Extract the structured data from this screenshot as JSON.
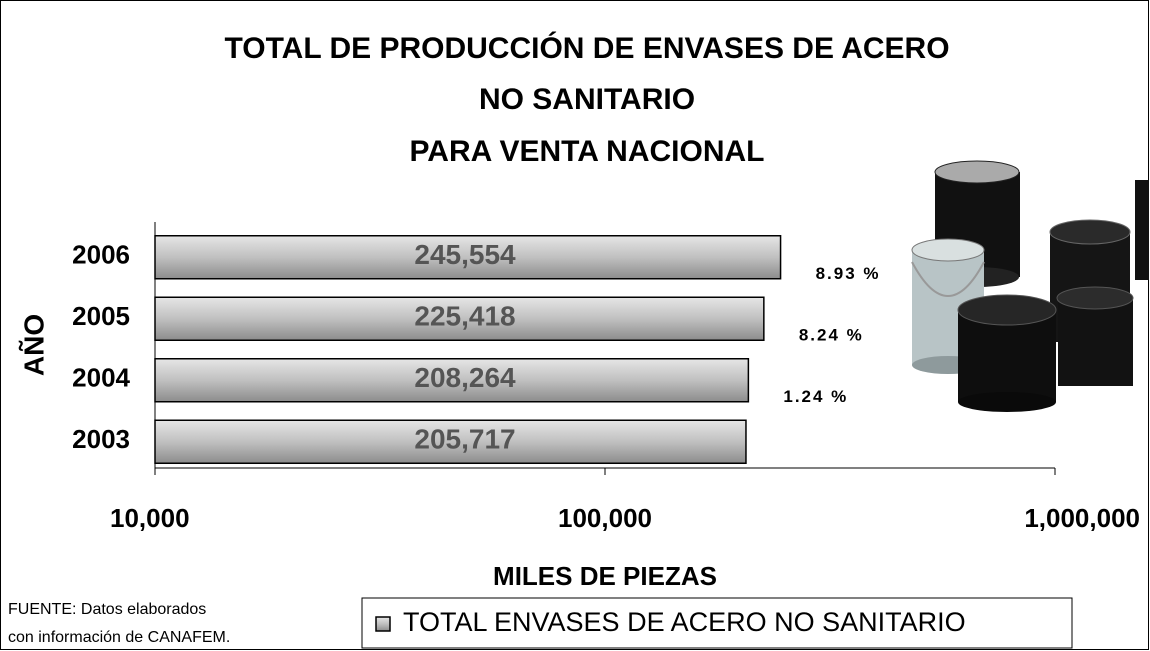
{
  "chart_data": {
    "type": "bar",
    "orientation": "horizontal",
    "title": [
      "TOTAL DE PRODUCCIÓN DE ENVASES DE ACERO",
      "NO SANITARIO",
      "PARA VENTA NACIONAL"
    ],
    "categories": [
      "2006",
      "2005",
      "2004",
      "2003"
    ],
    "series": [
      {
        "name": "TOTAL ENVASES DE ACERO NO SANITARIO",
        "color": "#c0c0c0",
        "values": [
          245554,
          225418,
          208264,
          205717
        ],
        "value_labels": [
          "245,554",
          "225,418",
          "208,264",
          "205,717"
        ]
      }
    ],
    "annotations": [
      "8.93 %",
      "8.24 %",
      "1.24 %"
    ],
    "xlabel": "MILES DE PIEZAS",
    "ylabel": "AÑO",
    "xscale": "log",
    "xlim": [
      10000,
      1000000
    ],
    "xticks": [
      {
        "value": 10000,
        "label": "10,000"
      },
      {
        "value": 100000,
        "label": "100,000"
      },
      {
        "value": 1000000,
        "label": "1,000,000"
      }
    ],
    "source": [
      "FUENTE: Datos elaborados",
      "con información de CANAFEM."
    ]
  }
}
